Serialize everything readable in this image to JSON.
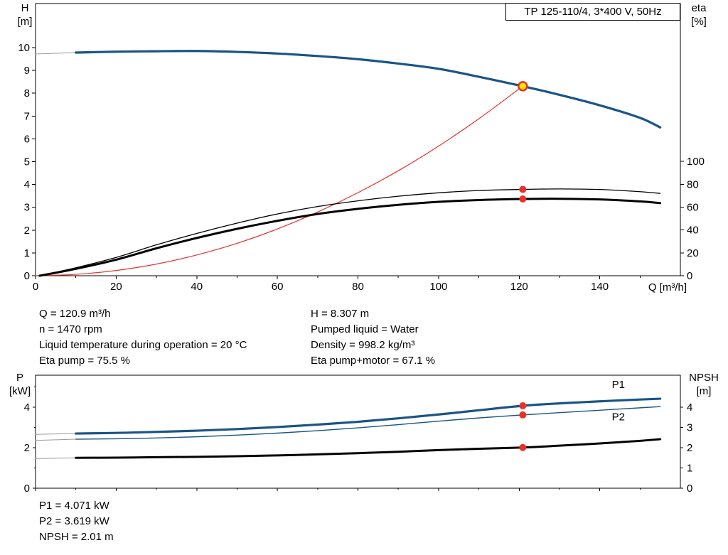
{
  "header": {
    "title_box": "TP 125-110/4, 3*400 V, 50Hz"
  },
  "axis_labels": {
    "h_top": {
      "line1": "H",
      "line2": "[m]"
    },
    "eta_top": {
      "line1": "eta",
      "line2": "[%]"
    },
    "p_left": {
      "line1": "P",
      "line2": "[kW]"
    },
    "npsh_right": {
      "line1": "NPSH",
      "line2": "[m]"
    }
  },
  "info": {
    "left": [
      "Q = 120.9 m³/h",
      "n = 1470 rpm",
      "Liquid temperature during operation = 20 °C",
      "Eta pump = 75.5 %"
    ],
    "right": [
      "H = 8.307 m",
      "Pumped liquid = Water",
      "Density = 998.2 kg/m³",
      "Eta pump+motor = 67.1 %"
    ]
  },
  "footer": [
    "P1 = 4.071 kW",
    "P2 = 3.619 kW",
    "NPSH = 2.01 m"
  ],
  "colors": {
    "curve_blue": "#1a5486",
    "curve_black": "#000000",
    "system_red": "#e8312a",
    "marker_red": "#e8312a",
    "duty_yellow": "#ffe400",
    "leader_gray": "#9a9a9a"
  },
  "chart_data": [
    {
      "type": "line",
      "name": "head-efficiency-chart",
      "xlabel": "Q [m³/h]",
      "ylabel_left": "H [m]",
      "ylabel_right": "eta [%]",
      "x_axis": {
        "min": 0,
        "max": 160,
        "ticks": [
          0,
          20,
          40,
          60,
          80,
          100,
          120,
          140
        ],
        "minor": [
          10,
          30,
          50,
          70,
          90,
          110,
          130,
          150
        ],
        "show_labels": true
      },
      "y_left": {
        "min": 0,
        "max": 11.93,
        "ticks": [
          0,
          1,
          2,
          3,
          4,
          5,
          6,
          7,
          8,
          9,
          10
        ]
      },
      "y_right": {
        "min": 0,
        "max": 238,
        "ticks": [
          0,
          20,
          40,
          60,
          80,
          100
        ]
      },
      "series": [
        {
          "name": "head-leader-line",
          "axis": "left",
          "color": "#9a9a9a",
          "width": 1,
          "points": [
            [
              0,
              9.72
            ],
            [
              10,
              9.78
            ]
          ]
        },
        {
          "name": "system-curve",
          "axis": "left",
          "color": "#e8312a",
          "width": 1.2,
          "points": [
            [
              0,
              0
            ],
            [
              10,
              0.06
            ],
            [
              20,
              0.23
            ],
            [
              30,
              0.51
            ],
            [
              40,
              0.91
            ],
            [
              50,
              1.42
            ],
            [
              60,
              2.05
            ],
            [
              70,
              2.79
            ],
            [
              80,
              3.64
            ],
            [
              90,
              4.6
            ],
            [
              100,
              5.68
            ],
            [
              110,
              6.88
            ],
            [
              120.9,
              8.307
            ]
          ]
        },
        {
          "name": "eta-pump-curve",
          "axis": "right",
          "color": "#000000",
          "width": 1.3,
          "points": [
            [
              1,
              0
            ],
            [
              10,
              7
            ],
            [
              20,
              16
            ],
            [
              30,
              27
            ],
            [
              40,
              37
            ],
            [
              50,
              46
            ],
            [
              60,
              54
            ],
            [
              70,
              60.5
            ],
            [
              80,
              65.5
            ],
            [
              90,
              69.5
            ],
            [
              100,
              72.5
            ],
            [
              110,
              74.5
            ],
            [
              120.9,
              75.5
            ],
            [
              130,
              75.9
            ],
            [
              140,
              75.4
            ],
            [
              150,
              73.5
            ],
            [
              155,
              72
            ]
          ]
        },
        {
          "name": "eta-pump-motor-curve",
          "axis": "right",
          "color": "#000000",
          "width": 3,
          "points": [
            [
              1,
              0
            ],
            [
              10,
              6
            ],
            [
              20,
              14
            ],
            [
              30,
              24
            ],
            [
              40,
              33
            ],
            [
              50,
              41
            ],
            [
              60,
              48
            ],
            [
              70,
              54
            ],
            [
              80,
              58.5
            ],
            [
              90,
              62
            ],
            [
              100,
              64.6
            ],
            [
              110,
              66.2
            ],
            [
              120.9,
              67.1
            ],
            [
              130,
              67.3
            ],
            [
              140,
              66.7
            ],
            [
              150,
              65
            ],
            [
              155,
              63.5
            ]
          ]
        },
        {
          "name": "head-curve",
          "axis": "left",
          "color": "#1a5486",
          "width": 3.2,
          "points": [
            [
              10,
              9.78
            ],
            [
              20,
              9.82
            ],
            [
              30,
              9.84
            ],
            [
              40,
              9.85
            ],
            [
              50,
              9.81
            ],
            [
              60,
              9.74
            ],
            [
              70,
              9.63
            ],
            [
              80,
              9.49
            ],
            [
              90,
              9.3
            ],
            [
              100,
              9.07
            ],
            [
              110,
              8.72
            ],
            [
              120.9,
              8.307
            ],
            [
              130,
              7.93
            ],
            [
              140,
              7.47
            ],
            [
              150,
              6.92
            ],
            [
              155,
              6.5
            ]
          ]
        }
      ],
      "markers": [
        {
          "name": "duty-point-marker",
          "axis": "left",
          "x": 120.9,
          "y": 8.307,
          "style": "duty"
        },
        {
          "name": "eta-pump-point",
          "axis": "right",
          "x": 120.9,
          "y": 75.5,
          "style": "dot"
        },
        {
          "name": "eta-motor-point",
          "axis": "right",
          "x": 120.9,
          "y": 67.1,
          "style": "dot"
        }
      ],
      "labels": []
    },
    {
      "type": "line",
      "name": "power-npsh-chart",
      "xlabel": "",
      "ylabel_left": "P [kW]",
      "ylabel_right": "NPSH [m]",
      "x_axis": {
        "min": 0,
        "max": 160,
        "ticks": [
          0,
          20,
          40,
          60,
          80,
          100,
          120,
          140
        ],
        "minor": [
          10,
          30,
          50,
          70,
          90,
          110,
          130,
          150
        ],
        "show_labels": false
      },
      "y_left": {
        "min": 0,
        "max": 5.58,
        "ticks": [
          0,
          2,
          4
        ],
        "minor": [
          1,
          3,
          5
        ]
      },
      "y_right": {
        "min": 0,
        "max": 5.58,
        "ticks": [
          0,
          1,
          2,
          3,
          4
        ]
      },
      "series": [
        {
          "name": "p1-leader-line",
          "axis": "left",
          "color": "#9a9a9a",
          "width": 1,
          "points": [
            [
              0,
              2.66
            ],
            [
              10,
              2.7
            ]
          ]
        },
        {
          "name": "p2-leader-line",
          "axis": "left",
          "color": "#9a9a9a",
          "width": 1,
          "points": [
            [
              0,
              2.36
            ],
            [
              10,
              2.42
            ]
          ]
        },
        {
          "name": "npsh-leader-line",
          "axis": "right",
          "color": "#9a9a9a",
          "width": 1,
          "points": [
            [
              0,
              1.46
            ],
            [
              10,
              1.5
            ]
          ]
        },
        {
          "name": "p2-curve",
          "axis": "left",
          "color": "#1a5486",
          "width": 1.4,
          "points": [
            [
              10,
              2.42
            ],
            [
              20,
              2.44
            ],
            [
              30,
              2.48
            ],
            [
              40,
              2.54
            ],
            [
              50,
              2.62
            ],
            [
              60,
              2.72
            ],
            [
              70,
              2.84
            ],
            [
              80,
              2.98
            ],
            [
              90,
              3.14
            ],
            [
              100,
              3.31
            ],
            [
              110,
              3.47
            ],
            [
              120.9,
              3.619
            ],
            [
              130,
              3.73
            ],
            [
              140,
              3.85
            ],
            [
              150,
              3.97
            ],
            [
              155,
              4.03
            ]
          ]
        },
        {
          "name": "p1-curve",
          "axis": "left",
          "color": "#1a5486",
          "width": 3.2,
          "points": [
            [
              10,
              2.7
            ],
            [
              20,
              2.73
            ],
            [
              30,
              2.78
            ],
            [
              40,
              2.84
            ],
            [
              50,
              2.92
            ],
            [
              60,
              3.02
            ],
            [
              70,
              3.14
            ],
            [
              80,
              3.28
            ],
            [
              90,
              3.45
            ],
            [
              100,
              3.64
            ],
            [
              110,
              3.85
            ],
            [
              120.9,
              4.071
            ],
            [
              130,
              4.19
            ],
            [
              140,
              4.29
            ],
            [
              150,
              4.38
            ],
            [
              155,
              4.42
            ]
          ]
        },
        {
          "name": "npsh-curve",
          "axis": "right",
          "color": "#000000",
          "width": 3,
          "points": [
            [
              10,
              1.5
            ],
            [
              20,
              1.51
            ],
            [
              30,
              1.53
            ],
            [
              40,
              1.55
            ],
            [
              50,
              1.58
            ],
            [
              60,
              1.62
            ],
            [
              70,
              1.67
            ],
            [
              80,
              1.73
            ],
            [
              90,
              1.8
            ],
            [
              100,
              1.88
            ],
            [
              110,
              1.95
            ],
            [
              120.9,
              2.01
            ],
            [
              130,
              2.1
            ],
            [
              140,
              2.21
            ],
            [
              150,
              2.34
            ],
            [
              155,
              2.42
            ]
          ]
        }
      ],
      "markers": [
        {
          "name": "p1-point",
          "axis": "left",
          "x": 120.9,
          "y": 4.071,
          "style": "dot"
        },
        {
          "name": "p2-point",
          "axis": "left",
          "x": 120.9,
          "y": 3.619,
          "style": "dot"
        },
        {
          "name": "npsh-point",
          "axis": "right",
          "x": 120.9,
          "y": 2.01,
          "style": "dot"
        }
      ],
      "labels": [
        {
          "text": "P1",
          "axis": "left",
          "x": 143,
          "y": 4.95,
          "color": "#1a5486"
        },
        {
          "text": "P2",
          "axis": "left",
          "x": 143,
          "y": 3.35,
          "color": "#1a5486"
        }
      ]
    }
  ]
}
